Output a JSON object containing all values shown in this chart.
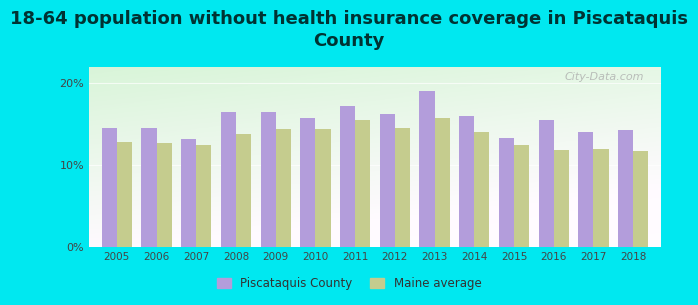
{
  "title": "18-64 population without health insurance coverage in Piscataquis\nCounty",
  "years": [
    2005,
    2006,
    2007,
    2008,
    2009,
    2010,
    2011,
    2012,
    2013,
    2014,
    2015,
    2016,
    2017,
    2018
  ],
  "piscataquis": [
    14.5,
    14.5,
    13.2,
    16.5,
    16.5,
    15.8,
    17.2,
    16.2,
    19.0,
    16.0,
    13.3,
    15.5,
    14.0,
    14.3
  ],
  "maine": [
    12.8,
    12.7,
    12.5,
    13.8,
    14.4,
    14.4,
    15.5,
    14.5,
    15.8,
    14.0,
    12.5,
    11.8,
    12.0,
    11.7
  ],
  "piscataquis_color": "#b39ddb",
  "maine_color": "#c5cc8e",
  "background_color": "#00e8f0",
  "ylim": [
    0,
    22
  ],
  "ytick_labels": [
    "0%",
    "10%",
    "20%"
  ],
  "bar_width": 0.38,
  "legend_piscataquis": "Piscataquis County",
  "legend_maine": "Maine average",
  "watermark": "City-Data.com",
  "title_color": "#003333",
  "title_fontsize": 13
}
